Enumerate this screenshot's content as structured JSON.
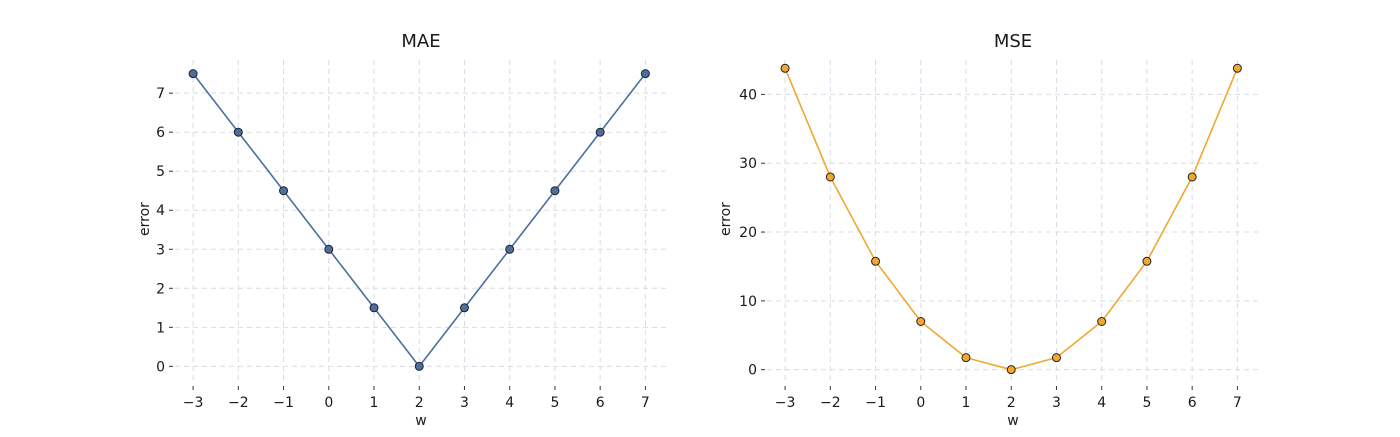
{
  "chart_data": [
    {
      "type": "line",
      "title": "MAE",
      "xlabel": "w",
      "ylabel": "error",
      "x": [
        -3,
        -2,
        -1,
        0,
        1,
        2,
        3,
        4,
        5,
        6,
        7
      ],
      "xticks": [
        -3,
        -2,
        -1,
        0,
        1,
        2,
        3,
        4,
        5,
        6,
        7
      ],
      "yticks": [
        0,
        1,
        2,
        3,
        4,
        5,
        6,
        7
      ],
      "xlim": [
        -3.4,
        7.5
      ],
      "ylim": [
        -0.35,
        7.85
      ],
      "grid": true,
      "series": [
        {
          "values": [
            7.5,
            6.0,
            4.5,
            3.0,
            1.5,
            0.0,
            1.5,
            3.0,
            4.5,
            6.0,
            7.5
          ],
          "color": "#4a6fa0",
          "marker_color": "#4a6fa0"
        }
      ]
    },
    {
      "type": "line",
      "title": "MSE",
      "xlabel": "w",
      "ylabel": "error",
      "x": [
        -3,
        -2,
        -1,
        0,
        1,
        2,
        3,
        4,
        5,
        6,
        7
      ],
      "xticks": [
        -3,
        -2,
        -1,
        0,
        1,
        2,
        3,
        4,
        5,
        6,
        7
      ],
      "yticks": [
        0,
        10,
        20,
        30,
        40
      ],
      "xlim": [
        -3.4,
        7.5
      ],
      "ylim": [
        -1.5,
        45.0
      ],
      "grid": true,
      "series": [
        {
          "values": [
            43.8,
            28.0,
            15.75,
            7.0,
            1.75,
            0.0,
            1.75,
            7.0,
            15.75,
            28.0,
            43.8
          ],
          "color": "#f0a830",
          "marker_color": "#f0a830"
        }
      ]
    }
  ]
}
